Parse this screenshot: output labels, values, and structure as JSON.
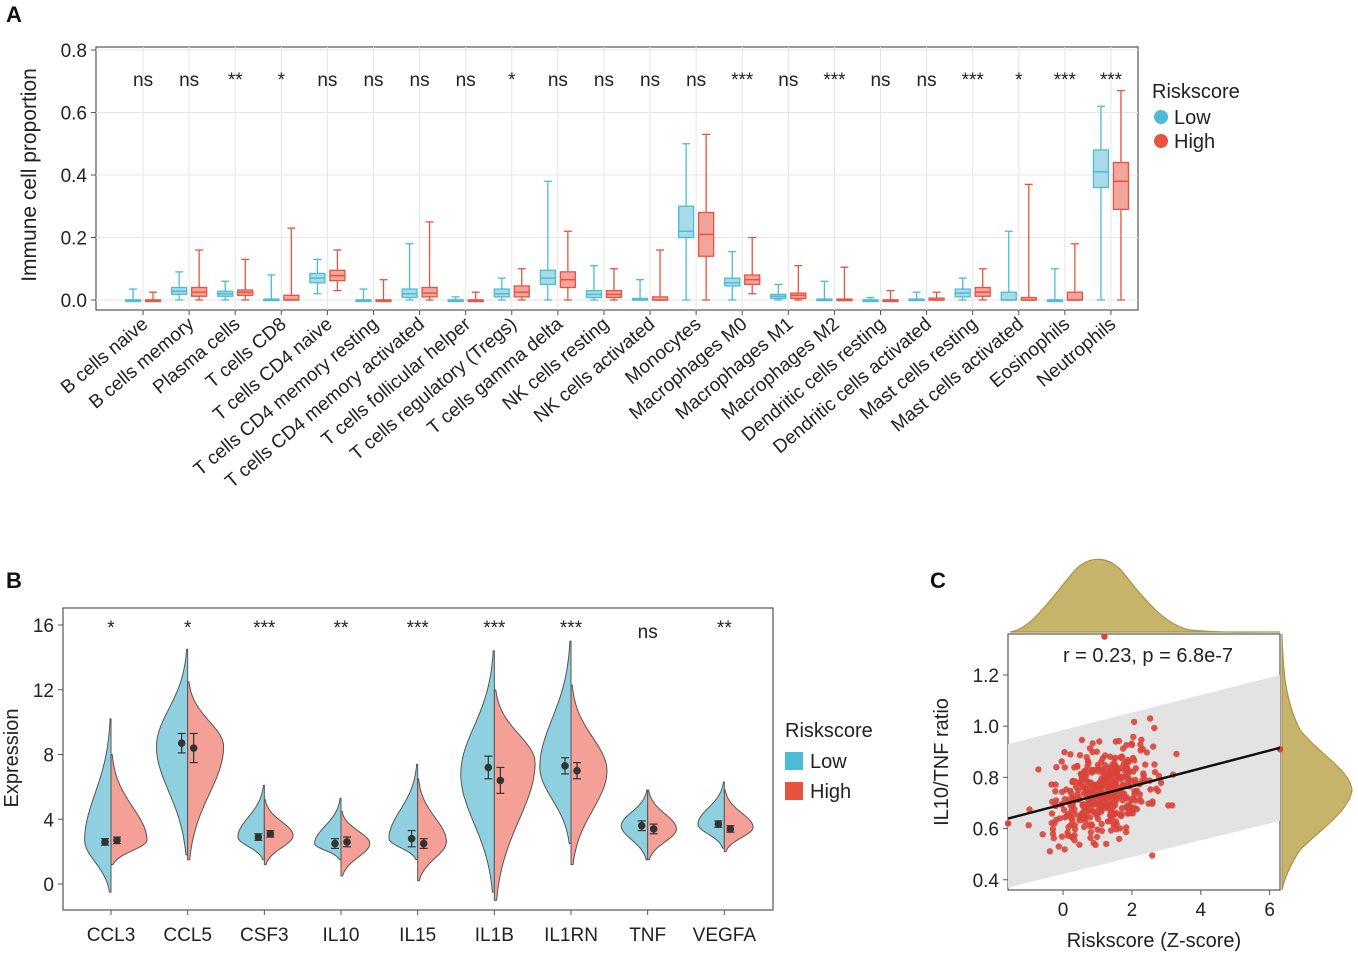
{
  "colors": {
    "low": "#4bbcd6",
    "low_fill": "#a9dbe7",
    "high": "#e8533f",
    "high_fill": "#f3a59c",
    "frame": "#555555",
    "grid": "#e6e6e6",
    "text": "#222222",
    "olive": "#c6b46b",
    "olive_dark": "#a89446",
    "point": "#d9443a",
    "band": "#e3e3e3"
  },
  "panel_labels": {
    "a": "A",
    "b": "B",
    "c": "C"
  },
  "chart_data": [
    {
      "id": "A",
      "type": "box",
      "ylabel": "Immune cell proportion",
      "ylim": [
        0,
        0.8
      ],
      "yticks": [
        "0.0",
        "0.2",
        "0.4",
        "0.6",
        "0.8"
      ],
      "legend": {
        "title": "Riskscore",
        "items": [
          "Low",
          "High"
        ],
        "position": "right"
      },
      "categories": [
        "B cells naive",
        "B cells memory",
        "Plasma cells",
        "T cells CD8",
        "T cells CD4 naive",
        "T cells CD4 memory resting",
        "T cells CD4 memory activated",
        "T cells follicular helper",
        "T cells regulatory (Tregs)",
        "T cells gamma delta",
        "NK cells resting",
        "NK cells activated",
        "Monocytes",
        "Macrophages M0",
        "Macrophages M1",
        "Macrophages M2",
        "Dendritic cells resting",
        "Dendritic cells activated",
        "Mast cells resting",
        "Mast cells activated",
        "Eosinophils",
        "Neutrophils"
      ],
      "significance": [
        "ns",
        "ns",
        "**",
        "*",
        "ns",
        "ns",
        "ns",
        "ns",
        "*",
        "ns",
        "ns",
        "ns",
        "ns",
        "***",
        "ns",
        "***",
        "ns",
        "ns",
        "***",
        "*",
        "***",
        "***"
      ],
      "series": [
        {
          "name": "Low",
          "boxes": [
            [
              0,
              0,
              0,
              0,
              0.035
            ],
            [
              0,
              0.018,
              0.028,
              0.04,
              0.09
            ],
            [
              0,
              0.012,
              0.02,
              0.028,
              0.06
            ],
            [
              0,
              0,
              0,
              0.003,
              0.08
            ],
            [
              0.02,
              0.055,
              0.07,
              0.085,
              0.13
            ],
            [
              0,
              0,
              0,
              0,
              0.035
            ],
            [
              0,
              0.008,
              0.02,
              0.035,
              0.18
            ],
            [
              0,
              0,
              0,
              0,
              0.01
            ],
            [
              0,
              0.01,
              0.02,
              0.035,
              0.07
            ],
            [
              0,
              0.05,
              0.07,
              0.095,
              0.38
            ],
            [
              0,
              0.008,
              0.018,
              0.03,
              0.11
            ],
            [
              0,
              0,
              0,
              0.005,
              0.065
            ],
            [
              0,
              0.2,
              0.22,
              0.3,
              0.5
            ],
            [
              0,
              0.045,
              0.055,
              0.07,
              0.155
            ],
            [
              0,
              0.005,
              0.012,
              0.018,
              0.05
            ],
            [
              0,
              0,
              0,
              0.003,
              0.06
            ],
            [
              0,
              0,
              0,
              0,
              0.008
            ],
            [
              0,
              0,
              0,
              0.003,
              0.025
            ],
            [
              0,
              0.01,
              0.022,
              0.035,
              0.07
            ],
            [
              0,
              0,
              0,
              0.025,
              0.22
            ],
            [
              0,
              0,
              0,
              0,
              0.1
            ],
            [
              0,
              0.36,
              0.41,
              0.48,
              0.62
            ]
          ]
        },
        {
          "name": "High",
          "boxes": [
            [
              0,
              0,
              0,
              0,
              0.025
            ],
            [
              0,
              0.012,
              0.025,
              0.04,
              0.16
            ],
            [
              0,
              0.015,
              0.025,
              0.032,
              0.13
            ],
            [
              0,
              0,
              0,
              0.015,
              0.23
            ],
            [
              0.03,
              0.062,
              0.078,
              0.095,
              0.16
            ],
            [
              0,
              0,
              0,
              0,
              0.065
            ],
            [
              0,
              0.01,
              0.022,
              0.04,
              0.25
            ],
            [
              0,
              0,
              0,
              0,
              0.025
            ],
            [
              0,
              0.01,
              0.025,
              0.045,
              0.1
            ],
            [
              0,
              0.04,
              0.065,
              0.09,
              0.22
            ],
            [
              0,
              0.008,
              0.018,
              0.03,
              0.1
            ],
            [
              0,
              0,
              0,
              0.01,
              0.16
            ],
            [
              0,
              0.14,
              0.21,
              0.28,
              0.53
            ],
            [
              0.02,
              0.05,
              0.065,
              0.08,
              0.2
            ],
            [
              0,
              0.005,
              0.015,
              0.022,
              0.11
            ],
            [
              0,
              0,
              0,
              0.003,
              0.105
            ],
            [
              0,
              0,
              0,
              0,
              0.03
            ],
            [
              0,
              0,
              0,
              0.006,
              0.025
            ],
            [
              0,
              0.012,
              0.025,
              0.04,
              0.1
            ],
            [
              0,
              0,
              0,
              0.008,
              0.37
            ],
            [
              0,
              0,
              0,
              0.025,
              0.18
            ],
            [
              0,
              0.29,
              0.38,
              0.44,
              0.67
            ]
          ]
        }
      ]
    },
    {
      "id": "B",
      "type": "split-violin",
      "ylabel": "Expression",
      "ylim": [
        -1,
        16
      ],
      "yticks": [
        "0",
        "4",
        "8",
        "12",
        "16"
      ],
      "legend": {
        "title": "Riskscore",
        "items": [
          "Low",
          "High"
        ],
        "position": "right"
      },
      "categories": [
        "CCL3",
        "CCL5",
        "CSF3",
        "IL10",
        "IL15",
        "IL1B",
        "IL1RN",
        "TNF",
        "VEGFA"
      ],
      "significance": [
        "*",
        "*",
        "***",
        "**",
        "***",
        "***",
        "***",
        "ns",
        "**"
      ],
      "series": [
        {
          "name": "Low",
          "min": [
            -0.5,
            1.8,
            1.5,
            1.5,
            1.5,
            -0.5,
            2.5,
            1.5,
            2.2
          ],
          "max": [
            10.2,
            14.5,
            6.1,
            5.3,
            7.4,
            14.4,
            15.0,
            5.8,
            6.3
          ],
          "mode": [
            2.7,
            8.5,
            2.9,
            2.5,
            2.8,
            6.8,
            7.2,
            3.6,
            3.7
          ],
          "width": [
            0.55,
            0.65,
            0.55,
            0.55,
            0.6,
            0.7,
            0.65,
            0.55,
            0.55
          ],
          "mean": [
            2.6,
            8.7,
            2.9,
            2.5,
            2.8,
            7.2,
            7.3,
            3.6,
            3.7
          ],
          "sd": [
            0.2,
            0.6,
            0.2,
            0.3,
            0.5,
            0.7,
            0.5,
            0.3,
            0.2
          ]
        },
        {
          "name": "High",
          "min": [
            1.2,
            1.5,
            1.2,
            0.5,
            0.2,
            -1.0,
            1.2,
            1.5,
            2.0
          ],
          "max": [
            8.0,
            12.5,
            5.2,
            4.5,
            6.5,
            12.0,
            12.3,
            5.8,
            5.8
          ],
          "mode": [
            2.7,
            8.5,
            3.0,
            2.5,
            2.6,
            7.5,
            7.0,
            3.4,
            3.5
          ],
          "width": [
            0.75,
            0.75,
            0.6,
            0.6,
            0.6,
            0.85,
            0.75,
            0.6,
            0.6
          ],
          "mean": [
            2.7,
            8.4,
            3.1,
            2.6,
            2.5,
            6.4,
            7.0,
            3.4,
            3.4
          ],
          "sd": [
            0.2,
            0.9,
            0.2,
            0.3,
            0.3,
            0.8,
            0.5,
            0.3,
            0.2
          ]
        }
      ]
    },
    {
      "id": "C",
      "type": "scatter",
      "title": "r = 0.23, p = 6.8e-7",
      "xlabel": "Riskscore (Z-score)",
      "ylabel": "IL10/TNF ratio",
      "xlim": [
        -1.6,
        6.3
      ],
      "ylim": [
        0.36,
        1.36
      ],
      "xticks": [
        "0",
        "2",
        "4",
        "6"
      ],
      "yticks": [
        "0.4",
        "0.6",
        "0.8",
        "1.0",
        "1.2"
      ],
      "fit": {
        "slope": 0.035,
        "intercept": 0.695
      },
      "band": {
        "upper_at_xmin": 0.93,
        "upper_at_xmax": 1.2,
        "lower_at_xmin": 0.37,
        "lower_at_xmax": 0.63
      },
      "n_points": 420
    }
  ]
}
